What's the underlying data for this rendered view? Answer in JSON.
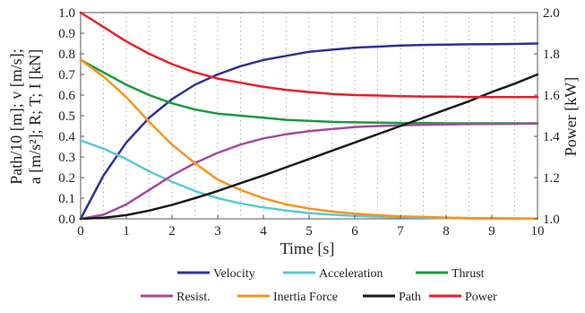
{
  "chart_data": {
    "type": "line",
    "title": "",
    "xlabel": "Time [s]",
    "ylabel_left_lines": [
      "Path/10 [m];  v [m/s];",
      "a [m/s²];   R;  T;  I [kN]"
    ],
    "ylabel_right": "Power [kW]",
    "xlim": [
      0,
      10
    ],
    "ylim_left": [
      0,
      1.0
    ],
    "ylim_right": [
      1.0,
      2.0
    ],
    "x_ticks": [
      "0",
      "1",
      "2",
      "3",
      "4",
      "5",
      "6",
      "7",
      "8",
      "9",
      "10"
    ],
    "y_left_ticks": [
      "0.0",
      "0.1",
      "0.2",
      "0.3",
      "0.4",
      "0.5",
      "0.6",
      "0.7",
      "0.8",
      "0.9",
      "1.0"
    ],
    "y_right_ticks": [
      "1.0",
      "1.2",
      "1.4",
      "1.6",
      "1.8",
      "2.0"
    ],
    "grid": "vertical dotted",
    "legend_position": "bottom",
    "x": [
      0,
      0.5,
      1,
      1.5,
      2,
      2.5,
      3,
      3.5,
      4,
      4.5,
      5,
      5.5,
      6,
      6.5,
      7,
      7.5,
      8,
      8.5,
      9,
      9.5,
      10
    ],
    "series": [
      {
        "name": "Velocity",
        "color": "#2e3192",
        "axis": "left",
        "values": [
          0.0,
          0.21,
          0.37,
          0.49,
          0.58,
          0.65,
          0.7,
          0.74,
          0.77,
          0.79,
          0.81,
          0.82,
          0.83,
          0.835,
          0.84,
          0.843,
          0.845,
          0.846,
          0.847,
          0.848,
          0.85
        ]
      },
      {
        "name": "Acceleration",
        "color": "#5bc8d8",
        "axis": "left",
        "values": [
          0.38,
          0.34,
          0.29,
          0.23,
          0.18,
          0.135,
          0.1,
          0.075,
          0.055,
          0.04,
          0.028,
          0.02,
          0.014,
          0.01,
          0.007,
          0.005,
          0.003,
          0.002,
          0.001,
          0.001,
          0.001
        ]
      },
      {
        "name": "Thrust",
        "color": "#1a9a3e",
        "axis": "left",
        "values": [
          0.77,
          0.71,
          0.65,
          0.6,
          0.56,
          0.53,
          0.51,
          0.5,
          0.49,
          0.48,
          0.475,
          0.47,
          0.468,
          0.466,
          0.465,
          0.464,
          0.463,
          0.463,
          0.463,
          0.463,
          0.463
        ]
      },
      {
        "name": "Resist.",
        "color": "#a44a9e",
        "axis": "left",
        "values": [
          0.0,
          0.02,
          0.07,
          0.14,
          0.21,
          0.27,
          0.32,
          0.36,
          0.39,
          0.41,
          0.425,
          0.435,
          0.445,
          0.45,
          0.453,
          0.456,
          0.458,
          0.459,
          0.46,
          0.461,
          0.462
        ]
      },
      {
        "name": "Inertia Force",
        "color": "#f7941d",
        "axis": "left",
        "values": [
          0.77,
          0.69,
          0.59,
          0.47,
          0.36,
          0.27,
          0.19,
          0.14,
          0.1,
          0.07,
          0.05,
          0.035,
          0.025,
          0.018,
          0.012,
          0.009,
          0.006,
          0.004,
          0.003,
          0.002,
          0.001
        ]
      },
      {
        "name": "Path",
        "color": "#1a1a1a",
        "axis": "left",
        "values": [
          0.0,
          0.005,
          0.018,
          0.04,
          0.068,
          0.1,
          0.135,
          0.173,
          0.21,
          0.25,
          0.29,
          0.33,
          0.37,
          0.41,
          0.45,
          0.49,
          0.53,
          0.57,
          0.615,
          0.655,
          0.7
        ]
      },
      {
        "name": "Power",
        "color": "#e8202a",
        "axis": "right",
        "values": [
          2.0,
          1.93,
          1.86,
          1.8,
          1.75,
          1.71,
          1.68,
          1.66,
          1.64,
          1.625,
          1.615,
          1.605,
          1.6,
          1.598,
          1.595,
          1.593,
          1.592,
          1.591,
          1.59,
          1.59,
          1.59
        ]
      }
    ]
  }
}
